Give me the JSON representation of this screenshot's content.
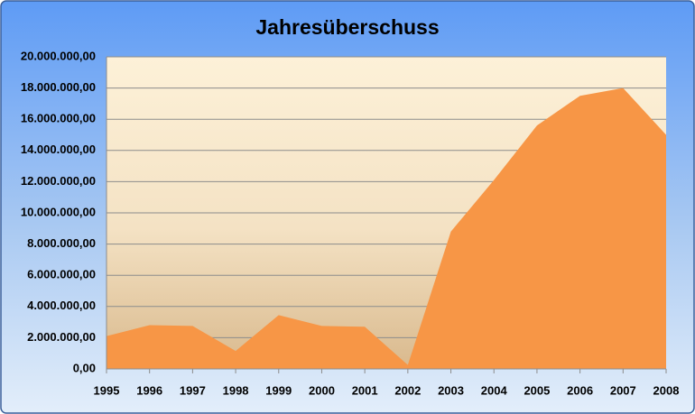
{
  "chart_data": {
    "type": "area",
    "title": "Jahresüberschuss",
    "categories": [
      "1995",
      "1996",
      "1997",
      "1998",
      "1999",
      "2000",
      "2001",
      "2002",
      "2003",
      "2004",
      "2005",
      "2006",
      "2007",
      "2008"
    ],
    "series": [
      {
        "name": "Jahresüberschuss",
        "color": "#f79646",
        "values": [
          2100000,
          2800000,
          2750000,
          1150000,
          3450000,
          2750000,
          2700000,
          250000,
          8800000,
          12100000,
          15600000,
          17500000,
          18000000,
          15000000
        ]
      }
    ],
    "ylim": [
      0,
      20000000
    ],
    "yticks": [
      {
        "value": 0,
        "label": "0,00"
      },
      {
        "value": 2000000,
        "label": "2.000.000,00"
      },
      {
        "value": 4000000,
        "label": "4.000.000,00"
      },
      {
        "value": 6000000,
        "label": "6.000.000,00"
      },
      {
        "value": 8000000,
        "label": "8.000.000,00"
      },
      {
        "value": 10000000,
        "label": "10.000.000,00"
      },
      {
        "value": 12000000,
        "label": "12.000.000,00"
      },
      {
        "value": 14000000,
        "label": "14.000.000,00"
      },
      {
        "value": 16000000,
        "label": "16.000.000,00"
      },
      {
        "value": 18000000,
        "label": "18.000.000,00"
      },
      {
        "value": 20000000,
        "label": "20.000.000,00"
      }
    ],
    "grid": true
  }
}
